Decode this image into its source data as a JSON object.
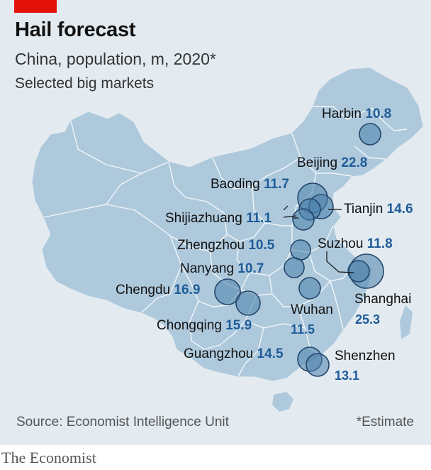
{
  "header": {
    "title": "Hail forecast",
    "subtitle": "China, population, m, 2020*",
    "subtitle2": "Selected big markets"
  },
  "colors": {
    "background": "#e3ebf1",
    "land": "#aec9dc",
    "province_border": "#f2f6f9",
    "bubble_fill": "#4a7faa",
    "bubble_stroke": "#23466a",
    "value_text": "#1f5c99",
    "brand_red": "#e3120b"
  },
  "cities": [
    {
      "name": "Harbin",
      "value": "10.8"
    },
    {
      "name": "Beijing",
      "value": "22.8"
    },
    {
      "name": "Baoding",
      "value": "11.7"
    },
    {
      "name": "Tianjin",
      "value": "14.6"
    },
    {
      "name": "Shijiazhuang",
      "value": "11.1"
    },
    {
      "name": "Zhengzhou",
      "value": "10.5"
    },
    {
      "name": "Suzhou",
      "value": "11.8"
    },
    {
      "name": "Nanyang",
      "value": "10.7"
    },
    {
      "name": "Chengdu",
      "value": "16.9"
    },
    {
      "name": "Shanghai",
      "value": "25.3"
    },
    {
      "name": "Wuhan",
      "value": "11.5"
    },
    {
      "name": "Chongqing",
      "value": "15.9"
    },
    {
      "name": "Guangzhou",
      "value": "14.5"
    },
    {
      "name": "Shenzhen",
      "value": "13.1"
    }
  ],
  "footer": {
    "source": "Source: Economist Intelligence Unit",
    "note": "*Estimate",
    "brand": "The Economist"
  }
}
